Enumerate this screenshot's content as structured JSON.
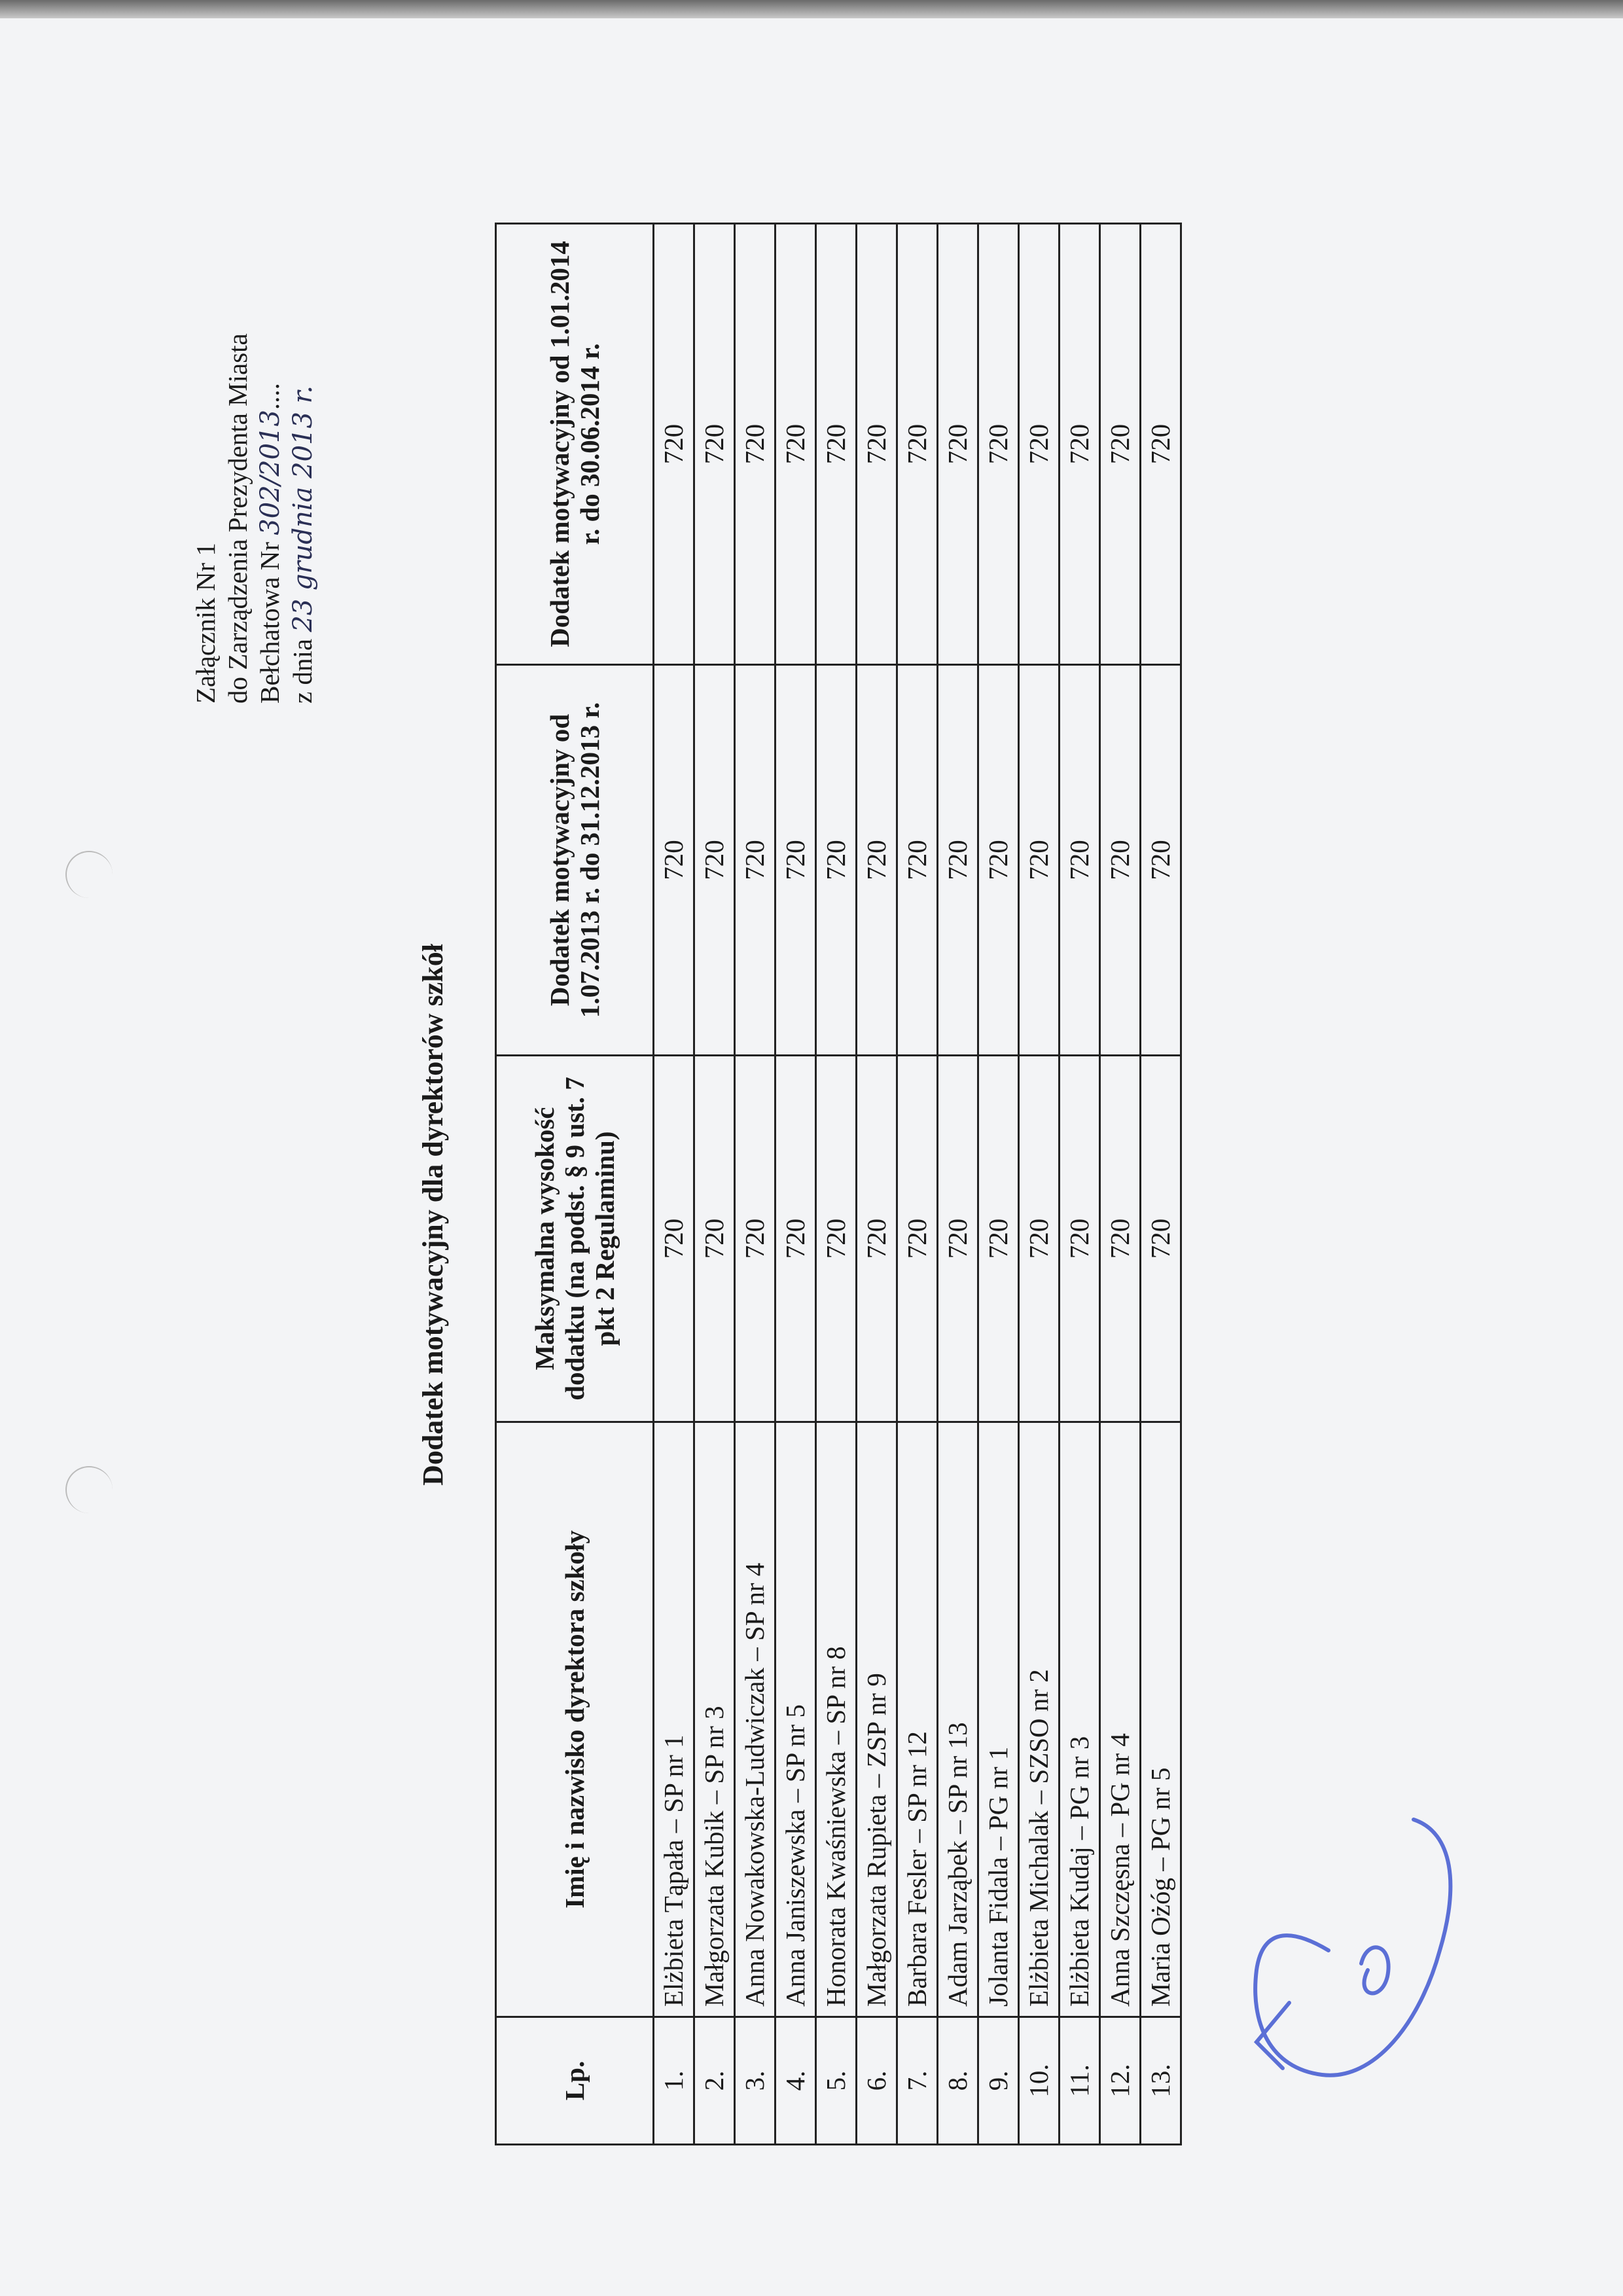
{
  "header": {
    "line1": "Załącznik Nr 1",
    "line2": "do Zarządzenia Prezydenta Miasta",
    "line3_prefix": "Bełchatowa Nr",
    "line3_handwritten": "302/2013",
    "line3_suffix": "....",
    "line4_prefix": "z dnia",
    "line4_handwritten": "23 grudnia 2013 r."
  },
  "title": "Dodatek motywacyjny dla dyrektorów szkół",
  "table": {
    "columns": [
      "Lp.",
      "Imię i nazwisko dyrektora szkoły",
      "Maksymalna wysokość dodatku (na podst. § 9 ust. 7 pkt 2 Regulaminu)",
      "Dodatek motywacyjny od 1.07.2013 r. do 31.12.2013 r.",
      "Dodatek motywacyjny od 1.01.2014 r. do 30.06.2014 r."
    ],
    "rows": [
      {
        "lp": "1.",
        "name": "Elżbieta Tąpała – SP nr 1",
        "max": "720",
        "h2013": "720",
        "h2014": "720"
      },
      {
        "lp": "2.",
        "name": "Małgorzata Kubik – SP nr 3",
        "max": "720",
        "h2013": "720",
        "h2014": "720"
      },
      {
        "lp": "3.",
        "name": "Anna Nowakowska-Ludwiczak – SP nr 4",
        "max": "720",
        "h2013": "720",
        "h2014": "720"
      },
      {
        "lp": "4.",
        "name": "Anna Janiszewska – SP nr 5",
        "max": "720",
        "h2013": "720",
        "h2014": "720"
      },
      {
        "lp": "5.",
        "name": "Honorata Kwaśniewska – SP nr 8",
        "max": "720",
        "h2013": "720",
        "h2014": "720"
      },
      {
        "lp": "6.",
        "name": "Małgorzata Rupieta – ZSP nr 9",
        "max": "720",
        "h2013": "720",
        "h2014": "720"
      },
      {
        "lp": "7.",
        "name": "Barbara Fesler – SP nr 12",
        "max": "720",
        "h2013": "720",
        "h2014": "720"
      },
      {
        "lp": "8.",
        "name": "Adam Jarząbek – SP nr 13",
        "max": "720",
        "h2013": "720",
        "h2014": "720"
      },
      {
        "lp": "9.",
        "name": "Jolanta Fidala – PG nr 1",
        "max": "720",
        "h2013": "720",
        "h2014": "720"
      },
      {
        "lp": "10.",
        "name": "Elżbieta Michalak – SZSO nr 2",
        "max": "720",
        "h2013": "720",
        "h2014": "720"
      },
      {
        "lp": "11.",
        "name": "Elżbieta Kudaj – PG nr 3",
        "max": "720",
        "h2013": "720",
        "h2014": "720"
      },
      {
        "lp": "12.",
        "name": "Anna Szczęsna – PG nr 4",
        "max": "720",
        "h2013": "720",
        "h2014": "720"
      },
      {
        "lp": "13.",
        "name": "Maria Ożóg – PG nr 5",
        "max": "720",
        "h2013": "720",
        "h2014": "720"
      }
    ]
  },
  "signature_color": "#5b6fd6"
}
